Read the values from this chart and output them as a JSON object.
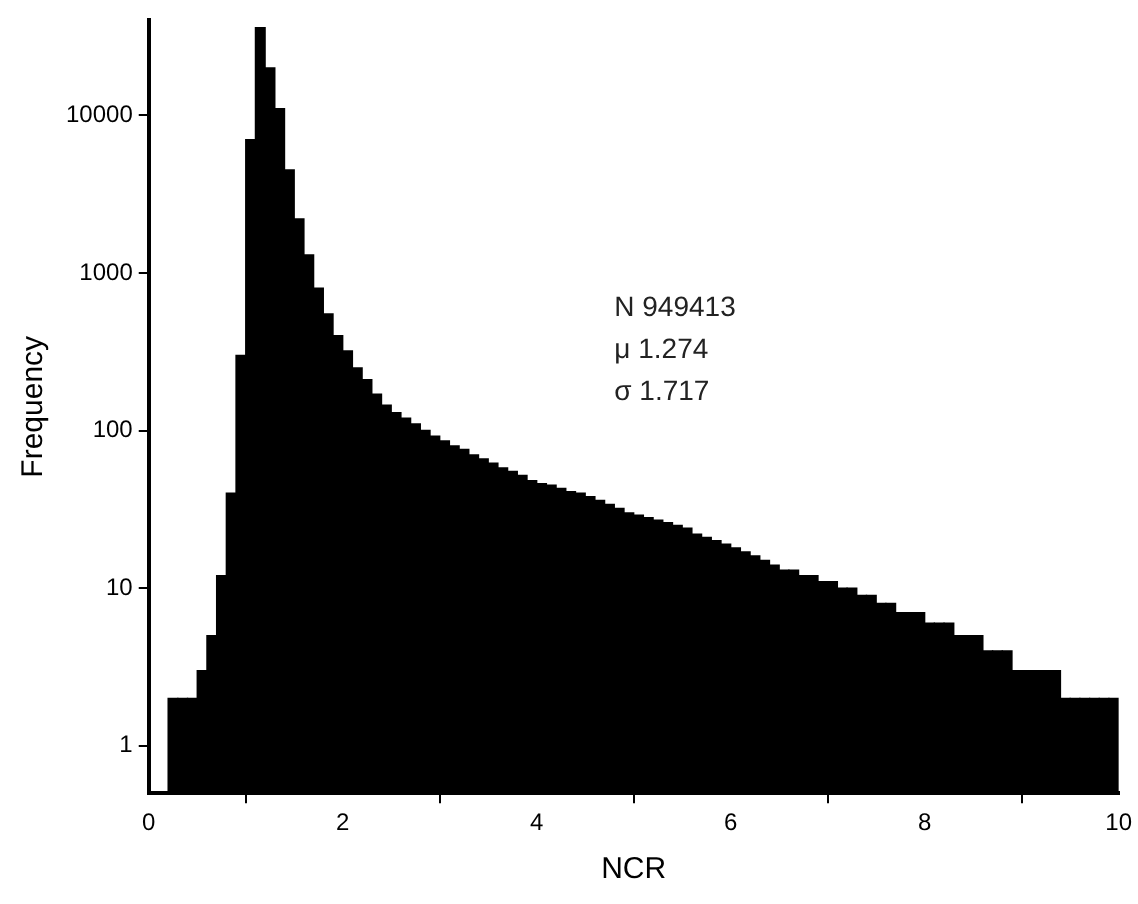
{
  "chart_data": {
    "type": "histogram",
    "xlabel": "NCR",
    "ylabel": "Frequency",
    "log": "y",
    "grid": false,
    "legend": false,
    "color": "#000000",
    "annotations": [
      "N 949413",
      "μ 1.274",
      "σ 1.717"
    ],
    "xlim": [
      0,
      10
    ],
    "xticks": [
      0,
      2,
      4,
      6,
      8,
      10
    ],
    "ylim": [
      0.5,
      40000
    ],
    "yticks": [
      1,
      10,
      100,
      1000,
      10000
    ],
    "bins": [
      0,
      0.1,
      0.2,
      0.3,
      0.4,
      0.5,
      0.6,
      0.7,
      0.8,
      0.9,
      1,
      1.1,
      1.2,
      1.3,
      1.4,
      1.5,
      1.6,
      1.7,
      1.8,
      1.9,
      2,
      2.1,
      2.2,
      2.3,
      2.4,
      2.5,
      2.6,
      2.7,
      2.8,
      2.9,
      3,
      3.1,
      3.2,
      3.3,
      3.4,
      3.5,
      3.6,
      3.7,
      3.8,
      3.9,
      4,
      4.1,
      4.2,
      4.3,
      4.4,
      4.5,
      4.6,
      4.7,
      4.8,
      4.9,
      5,
      5.1,
      5.2,
      5.3,
      5.4,
      5.5,
      5.6,
      5.7,
      5.8,
      5.9,
      6,
      6.1,
      6.2,
      6.3,
      6.4,
      6.5,
      6.6,
      6.7,
      6.8,
      6.9,
      7,
      7.1,
      7.2,
      7.3,
      7.4,
      7.5,
      7.6,
      7.7,
      7.8,
      7.9,
      8,
      8.1,
      8.2,
      8.3,
      8.4,
      8.5,
      8.6,
      8.7,
      8.8,
      8.9,
      9,
      9.1,
      9.2,
      9.3,
      9.4,
      9.5,
      9.6,
      9.7,
      9.8,
      9.9,
      10
    ],
    "values": [
      null,
      null,
      2,
      2,
      2,
      3,
      5,
      12,
      40,
      300,
      7000,
      36000,
      20000,
      11000,
      4500,
      2200,
      1300,
      800,
      550,
      400,
      320,
      250,
      210,
      170,
      145,
      130,
      120,
      110,
      100,
      92,
      86,
      80,
      76,
      70,
      66,
      62,
      58,
      55,
      52,
      48,
      46,
      45,
      43,
      41,
      40,
      38,
      36,
      34,
      32,
      30,
      29,
      28,
      27,
      26,
      25,
      24,
      22,
      21,
      20,
      19,
      18,
      17,
      16,
      15,
      14,
      13,
      13,
      12,
      12,
      11,
      11,
      10,
      10,
      9,
      9,
      8,
      8,
      7,
      7,
      7,
      6,
      6,
      6,
      5,
      5,
      5,
      4,
      4,
      4,
      3,
      3,
      3,
      3,
      3,
      2,
      2,
      2,
      2,
      2,
      2
    ]
  }
}
